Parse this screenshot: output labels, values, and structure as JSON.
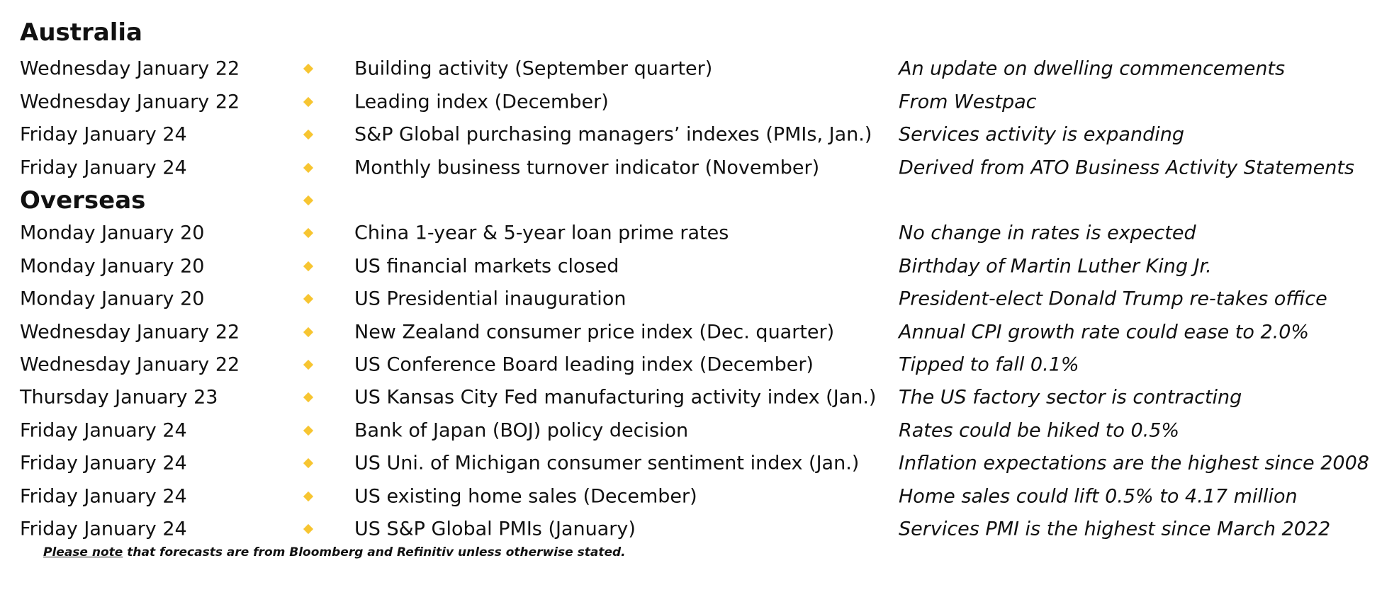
{
  "sections": [
    {
      "title": "Australia",
      "rows": [
        {
          "date": "Wednesday January 22",
          "event": "Building activity (September quarter)",
          "note": "An update on dwelling commencements"
        },
        {
          "date": "Wednesday January 22",
          "event": "Leading index (December)",
          "note": "From Westpac"
        },
        {
          "date": "Friday January 24",
          "event": "S&P Global purchasing managers’ indexes (PMIs, Jan.)",
          "note": "Services activity is expanding"
        },
        {
          "date": "Friday January 24",
          "event": "Monthly business turnover indicator (November)",
          "note": "Derived from ATO Business Activity Statements"
        }
      ]
    },
    {
      "title": "Overseas",
      "rows": [
        {
          "date": "Monday January 20",
          "event": "China 1-year & 5-year loan prime rates",
          "note": "No change in rates is expected"
        },
        {
          "date": "Monday January 20",
          "event": "US financial markets closed",
          "note": "Birthday of Martin Luther King Jr."
        },
        {
          "date": "Monday January 20",
          "event": "US Presidential inauguration",
          "note": "President-elect Donald Trump re-takes office"
        },
        {
          "date": "Wednesday January 22",
          "event": "New Zealand consumer price index (Dec. quarter)",
          "note": "Annual CPI growth rate could ease to 2.0%"
        },
        {
          "date": "Wednesday January 22",
          "event": "US Conference Board leading index (December)",
          "note": "Tipped to fall 0.1%"
        },
        {
          "date": "Thursday January 23",
          "event": "US Kansas City Fed manufacturing activity index (Jan.)",
          "note": "The US factory sector is contracting"
        },
        {
          "date": "Friday January 24",
          "event": "Bank of Japan (BOJ) policy decision",
          "note": "Rates could be hiked to 0.5%"
        },
        {
          "date": "Friday January 24",
          "event": "US Uni. of Michigan consumer sentiment index (Jan.)",
          "note": "Inflation expectations are the highest since 2008"
        },
        {
          "date": "Friday January 24",
          "event": "US existing home sales (December)",
          "note": "Home sales could lift 0.5% to 4.17 million"
        },
        {
          "date": "Friday January 24",
          "event": "US S&P Global PMIs (January)",
          "note": "Services PMI is the highest since March 2022"
        }
      ]
    }
  ],
  "footnote": {
    "emphasis": "Please note",
    "text": "that forecasts are from Bloomberg and Refinitiv unless otherwise stated."
  }
}
